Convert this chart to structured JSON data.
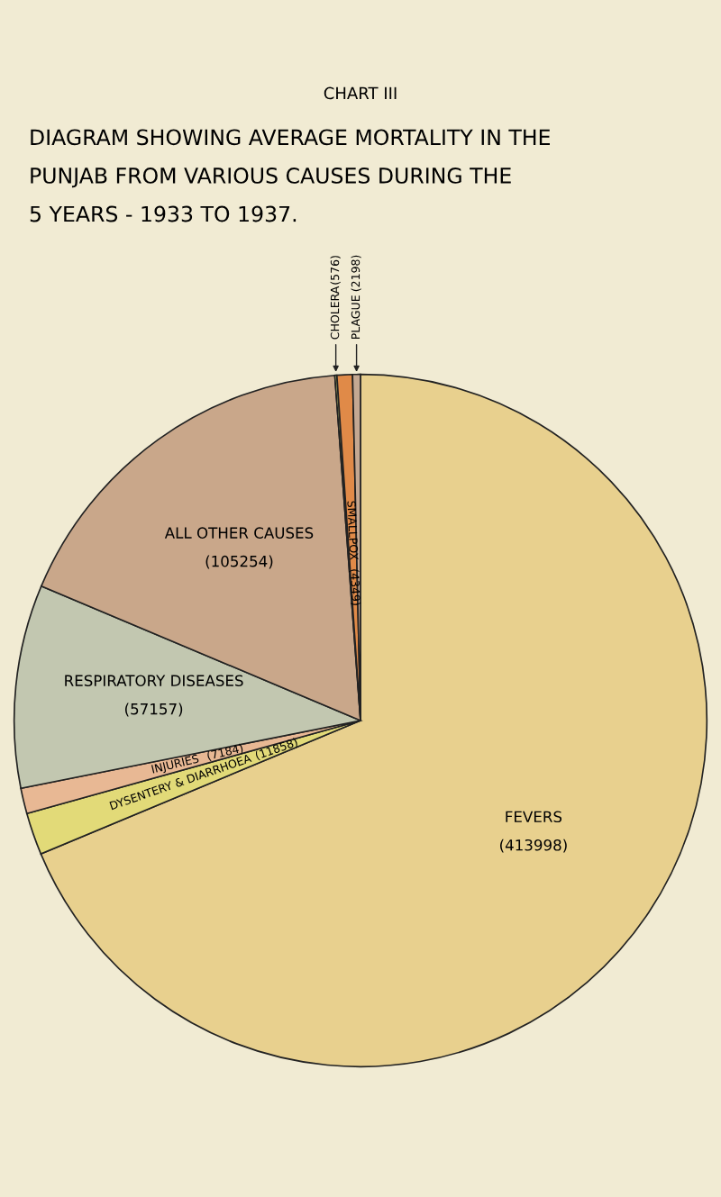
{
  "chart_data": {
    "type": "pie",
    "title": "CHART III",
    "subtitle": "DIAGRAM SHOWING AVERAGE MORTALITY IN THE\nPUNJAB FROM VARIOUS CAUSES DURING THE\n5 YEARS - 1933 TO 1937.",
    "categories": [
      "FEVERS",
      "DYSENTERY & DIARRHOEA",
      "INJURIES",
      "RESPIRATORY DISEASES",
      "ALL OTHER CAUSES",
      "CHOLERA",
      "SMALLPOX",
      "PLAGUE"
    ],
    "values": [
      413998,
      11858,
      7184,
      57157,
      105254,
      576,
      4349,
      2198
    ],
    "colors": [
      "#e8d08e",
      "#e2da78",
      "#e8b894",
      "#c2c7b0",
      "#c9a78a",
      "#b8c470",
      "#e08a48",
      "#c4a892"
    ],
    "value_labels": [
      "(413998)",
      "(11858)",
      "(7184)",
      "(57157)",
      "(105254)",
      "(576)",
      "(4349)",
      "(2198)"
    ],
    "legend": false
  }
}
